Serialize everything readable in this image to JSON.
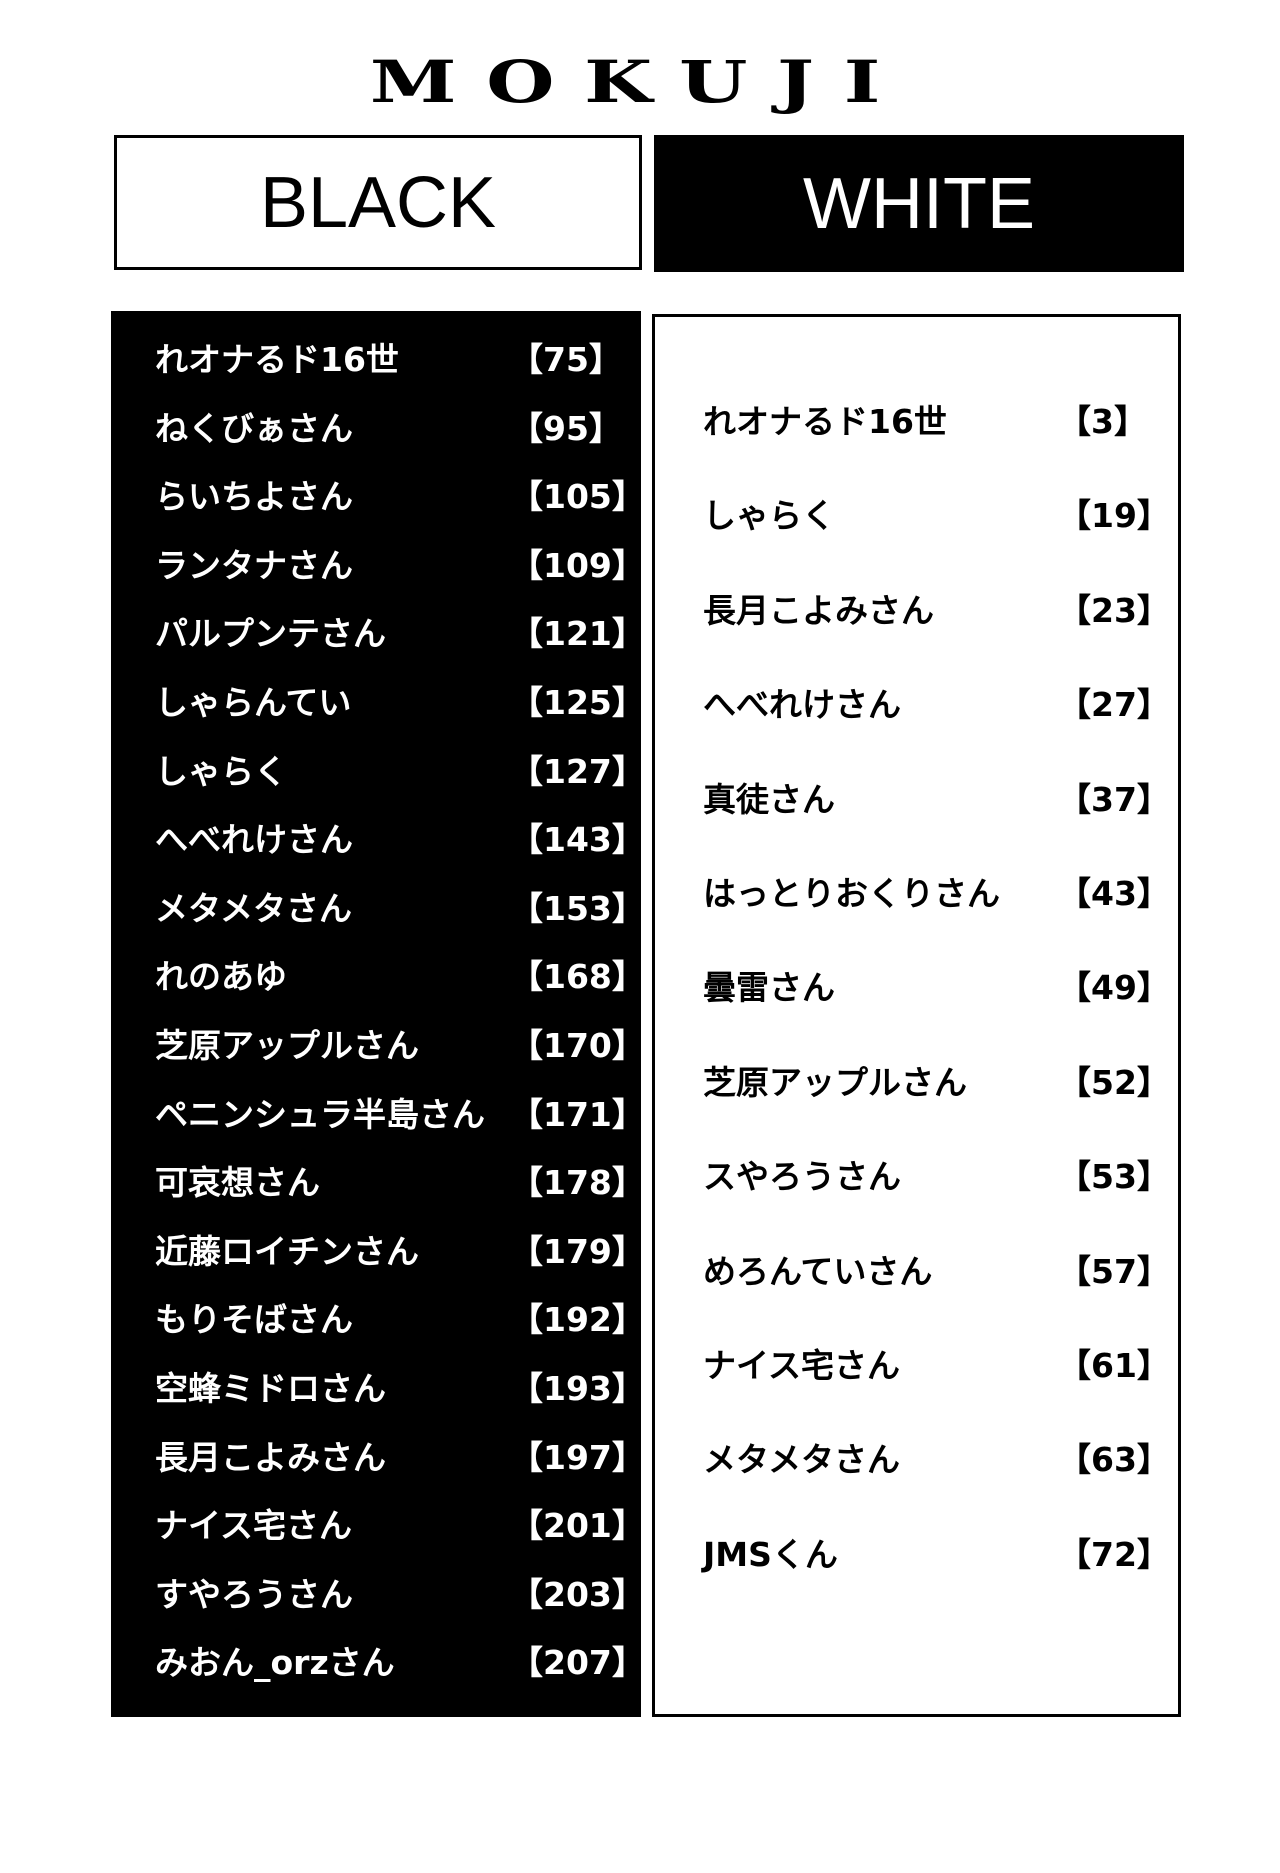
{
  "header": {
    "title": "MOKUJI"
  },
  "black": {
    "label": "BLACK",
    "entries": [
      {
        "name": "れオナるド16世",
        "page": "【75】"
      },
      {
        "name": "ねくびぁさん",
        "page": "【95】"
      },
      {
        "name": "らいちよさん",
        "page": "【105】"
      },
      {
        "name": "ランタナさん",
        "page": "【109】"
      },
      {
        "name": "パルプンテさん",
        "page": "【121】"
      },
      {
        "name": "しゃらんてい",
        "page": "【125】"
      },
      {
        "name": "しゃらく",
        "page": "【127】"
      },
      {
        "name": "へべれけさん",
        "page": "【143】"
      },
      {
        "name": "メタメタさん",
        "page": "【153】"
      },
      {
        "name": "れのあゆ",
        "page": "【168】"
      },
      {
        "name": "芝原アップルさん",
        "page": "【170】"
      },
      {
        "name": "ペニンシュラ半島さん",
        "page": "【171】"
      },
      {
        "name": "可哀想さん",
        "page": "【178】"
      },
      {
        "name": "近藤ロイチンさん",
        "page": "【179】"
      },
      {
        "name": "もりそばさん",
        "page": "【192】"
      },
      {
        "name": "空蜂ミドロさん",
        "page": "【193】"
      },
      {
        "name": "長月こよみさん",
        "page": "【197】"
      },
      {
        "name": "ナイス宅さん",
        "page": "【201】"
      },
      {
        "name": "すやろうさん",
        "page": "【203】"
      },
      {
        "name": "みおん_orzさん",
        "page": "【207】"
      }
    ]
  },
  "white": {
    "label": "WHITE",
    "entries": [
      {
        "name": "れオナるド16世",
        "page": "【3】"
      },
      {
        "name": "しゃらく",
        "page": "【19】"
      },
      {
        "name": "長月こよみさん",
        "page": "【23】"
      },
      {
        "name": "へべれけさん",
        "page": "【27】"
      },
      {
        "name": "真徒さん",
        "page": "【37】"
      },
      {
        "name": "はっとりおくりさん",
        "page": "【43】"
      },
      {
        "name": "曇雷さん",
        "page": "【49】"
      },
      {
        "name": "芝原アップルさん",
        "page": "【52】"
      },
      {
        "name": "スやろうさん",
        "page": "【53】"
      },
      {
        "name": "めろんていさん",
        "page": "【57】"
      },
      {
        "name": "ナイス宅さん",
        "page": "【61】"
      },
      {
        "name": "メタメタさん",
        "page": "【63】"
      },
      {
        "name": "JMSくん",
        "page": "【72】"
      }
    ]
  }
}
